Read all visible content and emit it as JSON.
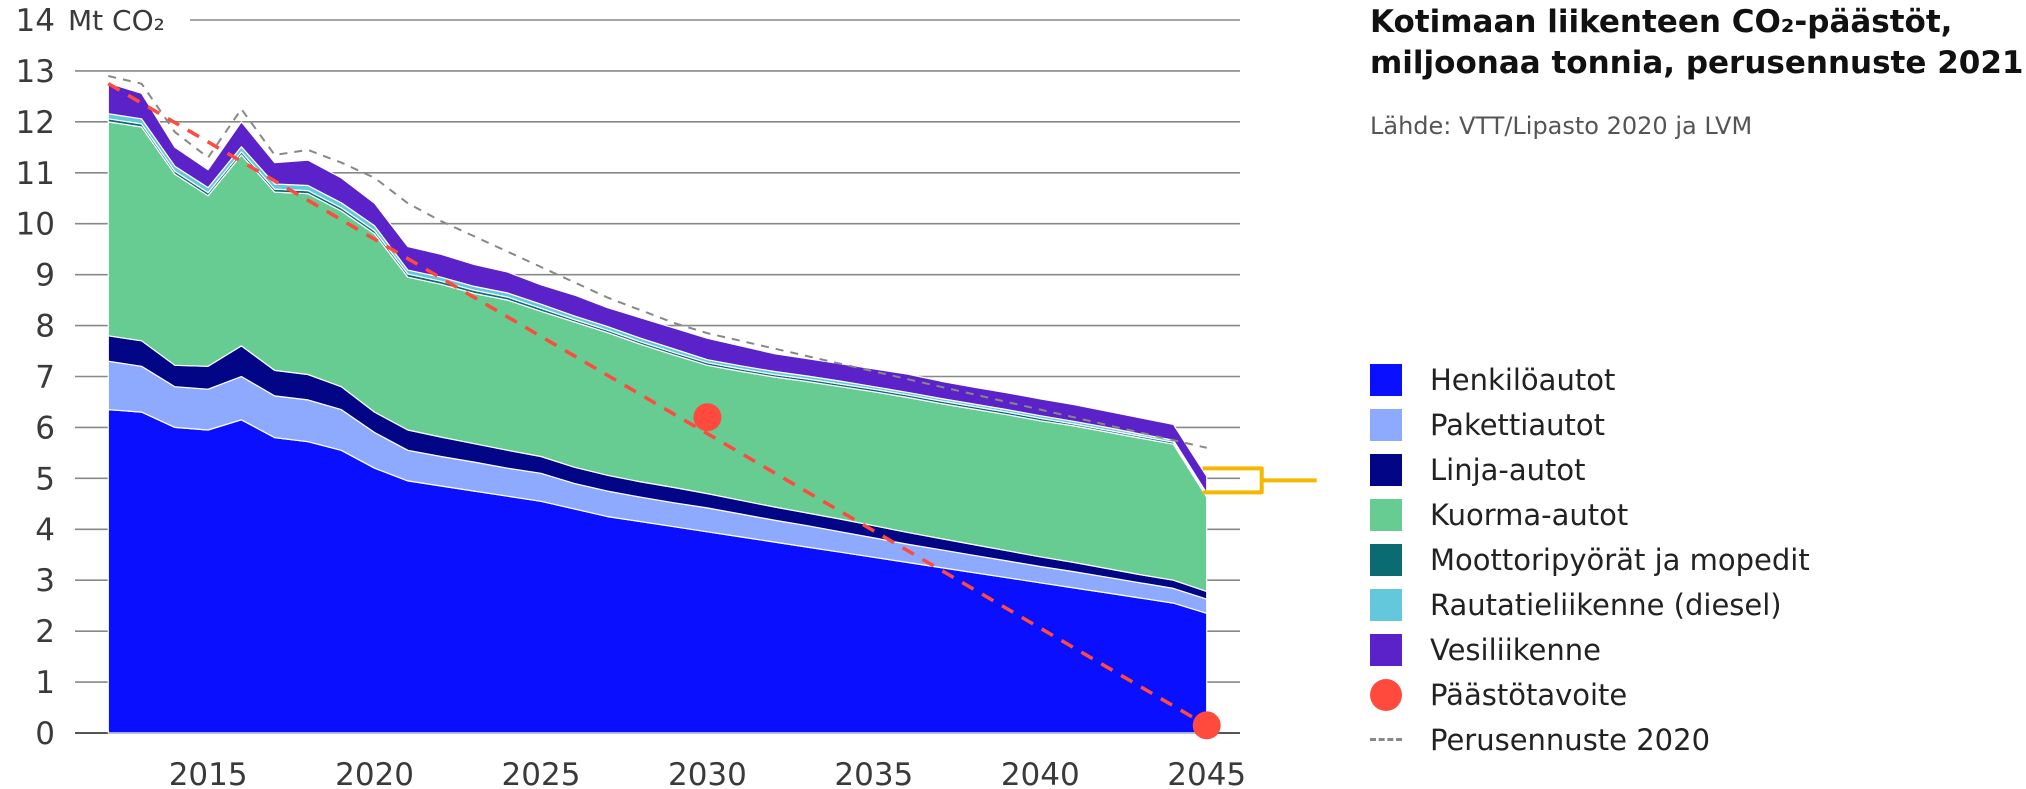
{
  "title_line1": "Kotimaan liikenteen CO₂-päästöt,",
  "title_line2": "miljoonaa tonnia, perusennuste 2021",
  "source": "Lähde: VTT/Lipasto 2020 ja LVM",
  "chart_data": {
    "type": "area",
    "stacked": true,
    "unit_label": "Mt CO₂",
    "ylim": [
      0,
      14
    ],
    "yticks": [
      0,
      1,
      2,
      3,
      4,
      5,
      6,
      7,
      8,
      9,
      10,
      11,
      12,
      13,
      14
    ],
    "xlim": [
      2011,
      2046
    ],
    "xticks": [
      2015,
      2020,
      2025,
      2030,
      2035,
      2040,
      2045
    ],
    "grid": true,
    "legend_position": "right",
    "years": [
      2012,
      2013,
      2014,
      2015,
      2016,
      2017,
      2018,
      2019,
      2020,
      2021,
      2022,
      2023,
      2024,
      2025,
      2026,
      2027,
      2028,
      2029,
      2030,
      2031,
      2032,
      2033,
      2034,
      2035,
      2036,
      2037,
      2038,
      2039,
      2040,
      2041,
      2042,
      2043,
      2044,
      2045
    ],
    "series": [
      {
        "name": "Henkilöautot",
        "color": "#0a10ff",
        "values": [
          6.35,
          6.3,
          6.0,
          5.95,
          6.15,
          5.8,
          5.72,
          5.55,
          5.2,
          4.95,
          4.85,
          4.75,
          4.65,
          4.55,
          4.4,
          4.25,
          4.15,
          4.05,
          3.95,
          3.85,
          3.75,
          3.65,
          3.55,
          3.45,
          3.35,
          3.25,
          3.15,
          3.05,
          2.95,
          2.85,
          2.75,
          2.65,
          2.55,
          2.35
        ]
      },
      {
        "name": "Pakettiautot",
        "color": "#8eaaff",
        "values": [
          0.95,
          0.9,
          0.8,
          0.8,
          0.85,
          0.82,
          0.82,
          0.8,
          0.7,
          0.6,
          0.58,
          0.57,
          0.55,
          0.55,
          0.5,
          0.5,
          0.48,
          0.47,
          0.47,
          0.45,
          0.43,
          0.42,
          0.4,
          0.38,
          0.36,
          0.35,
          0.34,
          0.33,
          0.32,
          0.32,
          0.31,
          0.3,
          0.29,
          0.28
        ]
      },
      {
        "name": "Linja-autot",
        "color": "#020586",
        "values": [
          0.5,
          0.5,
          0.42,
          0.45,
          0.6,
          0.5,
          0.5,
          0.45,
          0.4,
          0.4,
          0.38,
          0.36,
          0.35,
          0.33,
          0.32,
          0.31,
          0.3,
          0.3,
          0.28,
          0.27,
          0.26,
          0.25,
          0.25,
          0.24,
          0.23,
          0.22,
          0.21,
          0.2,
          0.19,
          0.18,
          0.17,
          0.16,
          0.16,
          0.15
        ]
      },
      {
        "name": "Kuorma-autot",
        "color": "#66cc91",
        "values": [
          4.2,
          4.2,
          3.75,
          3.35,
          3.75,
          3.5,
          3.55,
          3.45,
          3.5,
          3.0,
          3.0,
          2.95,
          2.95,
          2.85,
          2.85,
          2.8,
          2.7,
          2.6,
          2.52,
          2.53,
          2.55,
          2.58,
          2.6,
          2.63,
          2.65,
          2.65,
          2.66,
          2.67,
          2.67,
          2.68,
          2.68,
          2.68,
          2.67,
          1.85
        ]
      },
      {
        "name": "Moottoripyörät ja mopedit",
        "color": "#0b6b72",
        "values": [
          0.06,
          0.06,
          0.06,
          0.06,
          0.06,
          0.06,
          0.06,
          0.06,
          0.06,
          0.06,
          0.06,
          0.06,
          0.06,
          0.06,
          0.05,
          0.05,
          0.05,
          0.05,
          0.05,
          0.05,
          0.05,
          0.05,
          0.05,
          0.05,
          0.05,
          0.05,
          0.05,
          0.05,
          0.05,
          0.04,
          0.04,
          0.04,
          0.04,
          0.04
        ]
      },
      {
        "name": "Rautatieliikenne (diesel)",
        "color": "#64c8dc",
        "values": [
          0.1,
          0.1,
          0.1,
          0.1,
          0.1,
          0.1,
          0.1,
          0.1,
          0.1,
          0.08,
          0.08,
          0.08,
          0.08,
          0.08,
          0.07,
          0.07,
          0.07,
          0.07,
          0.06,
          0.06,
          0.06,
          0.06,
          0.06,
          0.05,
          0.05,
          0.05,
          0.05,
          0.05,
          0.05,
          0.05,
          0.05,
          0.04,
          0.04,
          0.04
        ]
      },
      {
        "name": "Vesiliikenne",
        "color": "#5a22c8",
        "values": [
          0.6,
          0.5,
          0.37,
          0.35,
          0.49,
          0.42,
          0.5,
          0.49,
          0.44,
          0.46,
          0.45,
          0.43,
          0.41,
          0.38,
          0.41,
          0.37,
          0.4,
          0.41,
          0.42,
          0.39,
          0.35,
          0.34,
          0.34,
          0.35,
          0.36,
          0.34,
          0.33,
          0.33,
          0.33,
          0.33,
          0.32,
          0.32,
          0.31,
          0.33
        ]
      }
    ],
    "target": {
      "name": "Päästötavoite",
      "color": "#ff4a3d",
      "line": [
        {
          "x": 2012,
          "y": 12.75
        },
        {
          "x": 2045,
          "y": 0.15
        }
      ],
      "points": [
        {
          "x": 2030,
          "y": 6.2
        },
        {
          "x": 2045,
          "y": 0.15
        }
      ]
    },
    "baseline_2020": {
      "name": "Perusennuste 2020",
      "color": "#888888",
      "points": [
        [
          2012,
          12.9
        ],
        [
          2013,
          12.75
        ],
        [
          2014,
          11.8
        ],
        [
          2015,
          11.3
        ],
        [
          2016,
          12.25
        ],
        [
          2017,
          11.35
        ],
        [
          2018,
          11.45
        ],
        [
          2019,
          11.2
        ],
        [
          2020,
          10.9
        ],
        [
          2021,
          10.4
        ],
        [
          2022,
          10.05
        ],
        [
          2023,
          9.75
        ],
        [
          2024,
          9.45
        ],
        [
          2025,
          9.15
        ],
        [
          2026,
          8.85
        ],
        [
          2027,
          8.55
        ],
        [
          2028,
          8.3
        ],
        [
          2029,
          8.05
        ],
        [
          2030,
          7.85
        ],
        [
          2031,
          7.7
        ],
        [
          2032,
          7.55
        ],
        [
          2033,
          7.4
        ],
        [
          2034,
          7.25
        ],
        [
          2035,
          7.1
        ],
        [
          2036,
          6.95
        ],
        [
          2037,
          6.8
        ],
        [
          2038,
          6.65
        ],
        [
          2039,
          6.5
        ],
        [
          2040,
          6.35
        ],
        [
          2041,
          6.2
        ],
        [
          2042,
          6.05
        ],
        [
          2043,
          5.9
        ],
        [
          2044,
          5.75
        ],
        [
          2045,
          5.6
        ]
      ]
    },
    "highlight": {
      "value_from": 4.92,
      "value_to": 5.0,
      "color": "#f5b800"
    }
  }
}
